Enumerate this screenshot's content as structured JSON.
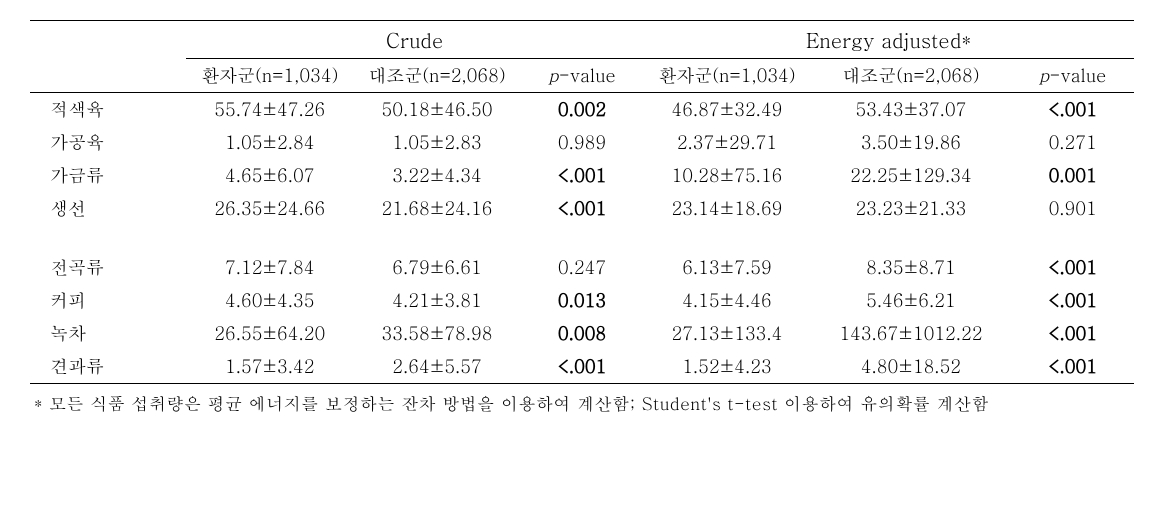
{
  "groupHeaders": {
    "crude": "Crude",
    "energy": "Energy adjusted*"
  },
  "subHeaders": {
    "case": "환자군(n=1,034)",
    "control": "대조군(n=2,068)",
    "p": "p-value"
  },
  "rows": [
    {
      "label": "적색육",
      "c1": "55.74±47.26",
      "c2": "50.18±46.50",
      "p1": "0.002",
      "p1b": true,
      "c3": "46.87±32.49",
      "c4": "53.43±37.07",
      "p2": "<.001",
      "p2b": true
    },
    {
      "label": "가공육",
      "c1": "1.05±2.84",
      "c2": "1.05±2.83",
      "p1": "0.989",
      "p1b": false,
      "c3": "2.37±29.71",
      "c4": "3.50±19.86",
      "p2": "0.271",
      "p2b": false
    },
    {
      "label": "가금류",
      "c1": "4.65±6.07",
      "c2": "3.22±4.34",
      "p1": "<.001",
      "p1b": true,
      "c3": "10.28±75.16",
      "c4": "22.25±129.34",
      "p2": "0.001",
      "p2b": true
    },
    {
      "label": "생선",
      "c1": "26.35±24.66",
      "c2": "21.68±24.16",
      "p1": "<.001",
      "p1b": true,
      "c3": "23.14±18.69",
      "c4": "23.23±21.33",
      "p2": "0.901",
      "p2b": false
    }
  ],
  "rows2": [
    {
      "label": "전곡류",
      "c1": "7.12±7.84",
      "c2": "6.79±6.61",
      "p1": "0.247",
      "p1b": false,
      "c3": "6.13±7.59",
      "c4": "8.35±8.71",
      "p2": "<.001",
      "p2b": true
    },
    {
      "label": "커피",
      "c1": "4.60±4.35",
      "c2": "4.21±3.81",
      "p1": "0.013",
      "p1b": true,
      "c3": "4.15±4.46",
      "c4": "5.46±6.21",
      "p2": "<.001",
      "p2b": true
    },
    {
      "label": "녹차",
      "c1": "26.55±64.20",
      "c2": "33.58±78.98",
      "p1": "0.008",
      "p1b": true,
      "c3": "27.13±133.4",
      "c4": "143.67±1012.22",
      "p2": "<.001",
      "p2b": true
    },
    {
      "label": "견과류",
      "c1": "1.57±3.42",
      "c2": "2.64±5.57",
      "p1": "<.001",
      "p1b": true,
      "c3": "1.52±4.23",
      "c4": "4.80±18.52",
      "p2": "<.001",
      "p2b": true
    }
  ],
  "footnote": "* 모든 식품 섭취량은 평균 에너지를 보정하는 잔차 방법을 이용하여 계산함; Student's t-test 이용하여 유의확률 계산함"
}
